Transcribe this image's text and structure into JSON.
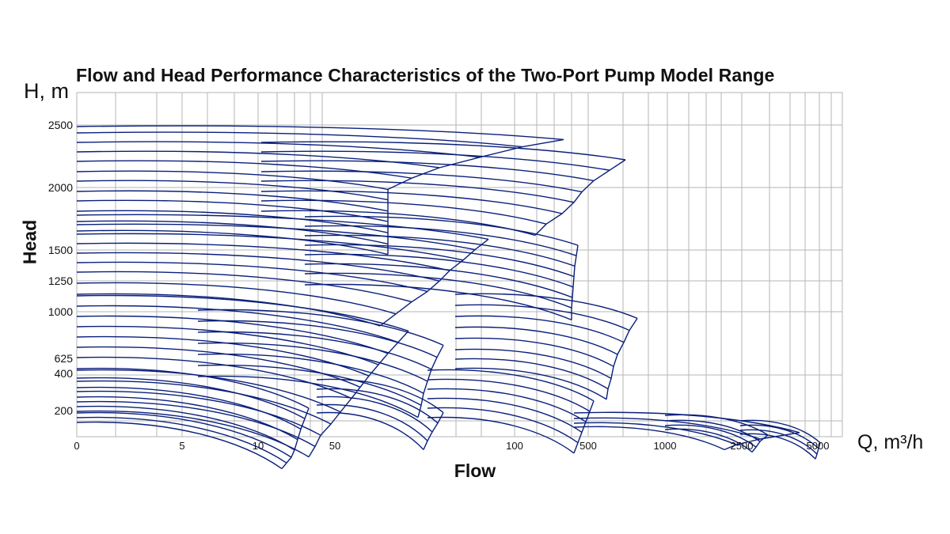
{
  "chart_data": {
    "type": "line",
    "title": "Flow and Head Performance Characteristics of the Two-Port Pump Model Range",
    "xlabel": "Flow",
    "ylabel": "Head",
    "x_unit": "Q, m³/h",
    "y_unit": "H, m",
    "x_ticks": [
      "0",
      "5",
      "10",
      "50",
      "100",
      "500",
      "1000",
      "2500",
      "5000"
    ],
    "y_ticks": [
      "2500",
      "2000",
      "1500",
      "1250",
      "1000",
      "625",
      "400",
      "200"
    ],
    "grid": true,
    "series_color": "#0a1f7a",
    "grid_color": "#b5b5b5"
  }
}
